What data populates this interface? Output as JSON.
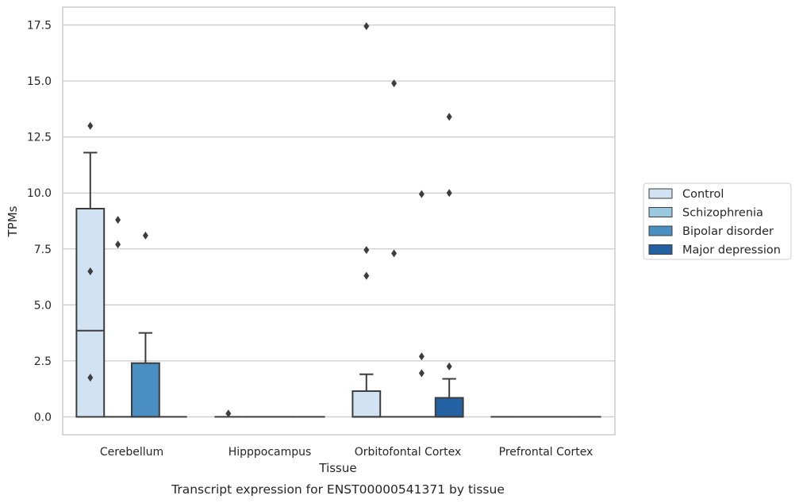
{
  "chart_data": {
    "type": "box",
    "title": "",
    "caption": "Transcript expression for ENST00000541371 by tissue",
    "xlabel": "Tissue",
    "ylabel": "TPMs",
    "ylim": [
      -0.8,
      18.3
    ],
    "yticks": [
      "0.0",
      "2.5",
      "5.0",
      "7.5",
      "10.0",
      "12.5",
      "15.0",
      "17.5"
    ],
    "ytick_values": [
      0,
      2.5,
      5,
      7.5,
      10,
      12.5,
      15,
      17.5
    ],
    "grid": "horizontal",
    "legend_position": "right",
    "categories": [
      "Cerebellum",
      "Hipppocampus",
      "Orbitofontal Cortex",
      "Prefrontal Cortex"
    ],
    "series": [
      {
        "name": "Control",
        "color": "#d1e2f2",
        "boxes": [
          {
            "min": 0,
            "q1": 0,
            "median": 3.85,
            "q3": 9.3,
            "max": 11.8,
            "outliers": [
              13.0,
              6.5,
              1.75
            ]
          },
          {
            "min": 0,
            "q1": 0,
            "median": 0,
            "q3": 0,
            "max": 0,
            "outliers": [
              0.15
            ]
          },
          {
            "min": 0,
            "q1": 0,
            "median": 0,
            "q3": 1.15,
            "max": 1.9,
            "outliers": [
              17.45,
              7.45,
              6.3
            ]
          },
          {
            "min": 0,
            "q1": 0,
            "median": 0,
            "q3": 0,
            "max": 0,
            "outliers": []
          }
        ]
      },
      {
        "name": "Schizophrenia",
        "color": "#9ac8e0",
        "boxes": [
          {
            "min": 0,
            "q1": 0,
            "median": 0,
            "q3": 0,
            "max": 0,
            "outliers": [
              8.8,
              7.7
            ]
          },
          {
            "min": 0,
            "q1": 0,
            "median": 0,
            "q3": 0,
            "max": 0,
            "outliers": []
          },
          {
            "min": 0,
            "q1": 0,
            "median": 0,
            "q3": 0,
            "max": 0,
            "outliers": [
              14.9,
              7.3
            ]
          },
          {
            "min": 0,
            "q1": 0,
            "median": 0,
            "q3": 0,
            "max": 0,
            "outliers": []
          }
        ]
      },
      {
        "name": "Bipolar disorder",
        "color": "#4a8fc1",
        "boxes": [
          {
            "min": 0,
            "q1": 0,
            "median": 0,
            "q3": 2.4,
            "max": 3.75,
            "outliers": [
              8.1
            ]
          },
          {
            "min": 0,
            "q1": 0,
            "median": 0,
            "q3": 0,
            "max": 0,
            "outliers": []
          },
          {
            "min": 0,
            "q1": 0,
            "median": 0,
            "q3": 0,
            "max": 0,
            "outliers": [
              9.95,
              2.7,
              1.95
            ]
          },
          {
            "min": 0,
            "q1": 0,
            "median": 0,
            "q3": 0,
            "max": 0,
            "outliers": []
          }
        ]
      },
      {
        "name": "Major depression",
        "color": "#2461a3",
        "boxes": [
          {
            "min": 0,
            "q1": 0,
            "median": 0,
            "q3": 0,
            "max": 0,
            "outliers": []
          },
          {
            "min": 0,
            "q1": 0,
            "median": 0,
            "q3": 0,
            "max": 0,
            "outliers": []
          },
          {
            "min": 0,
            "q1": 0,
            "median": 0,
            "q3": 0.85,
            "max": 1.7,
            "outliers": [
              13.4,
              10.0,
              2.25
            ]
          },
          {
            "min": 0,
            "q1": 0,
            "median": 0,
            "q3": 0,
            "max": 0,
            "outliers": []
          }
        ]
      }
    ]
  }
}
